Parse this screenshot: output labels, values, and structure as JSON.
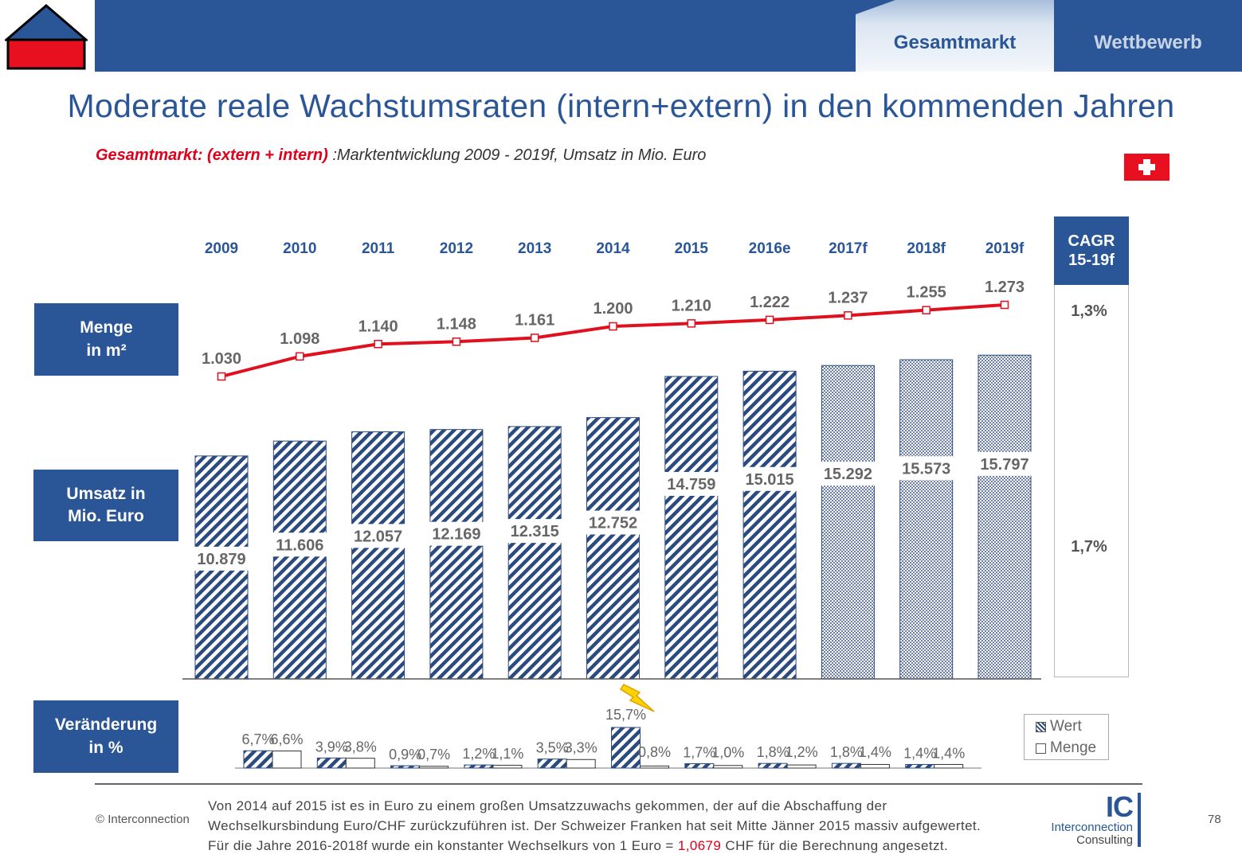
{
  "header": {
    "tabs": [
      {
        "label": "Gesamtmarkt",
        "active": true
      },
      {
        "label": "Wettbewerb",
        "active": false
      }
    ]
  },
  "title": "Moderate reale Wachstumsraten (intern+extern) in den kommenden Jahren",
  "subtitle": {
    "prefix": "Gesamtmarkt: (extern + intern)",
    "text": " :Marktentwicklung 2009 - 2019f, Umsatz in Mio. Euro"
  },
  "row_labels": {
    "menge_line1": "Menge",
    "menge_line2": "in m²",
    "umsatz_line1": "Umsatz in",
    "umsatz_line2": "Mio. Euro",
    "veraenderung_line1": "Veränderung",
    "veraenderung_line2": "in %"
  },
  "cagr": {
    "header_line1": "CAGR",
    "header_line2": "15-19f",
    "menge": "1,3%",
    "umsatz": "1,7%"
  },
  "legend": {
    "wert": "Wert",
    "menge": "Menge"
  },
  "colors": {
    "brand_blue": "#2a5698",
    "line_red": "#e0101e",
    "bar_hatch": "#2a4a80",
    "flag_red": "#e8101e"
  },
  "chart_data": [
    {
      "type": "bar",
      "categories": [
        "2009",
        "2010",
        "2011",
        "2012",
        "2013",
        "2014",
        "2015",
        "2016e",
        "2017f",
        "2018f",
        "2019f"
      ],
      "values": [
        10879,
        11606,
        12057,
        12169,
        12315,
        12752,
        14759,
        15015,
        15292,
        15573,
        15797
      ],
      "value_labels": [
        "10.879",
        "11.606",
        "12.057",
        "12.169",
        "12.315",
        "12.752",
        "14.759",
        "15.015",
        "15.292",
        "15.573",
        "15.797"
      ],
      "forecast_from_index": 8,
      "ylim": [
        0,
        16000
      ]
    },
    {
      "type": "line",
      "categories": [
        "2009",
        "2010",
        "2011",
        "2012",
        "2013",
        "2014",
        "2015",
        "2016e",
        "2017f",
        "2018f",
        "2019f"
      ],
      "values": [
        1030,
        1098,
        1140,
        1148,
        1161,
        1200,
        1210,
        1222,
        1237,
        1255,
        1273
      ],
      "value_labels": [
        "1.030",
        "1.098",
        "1.140",
        "1.148",
        "1.161",
        "1.200",
        "1.210",
        "1.222",
        "1.237",
        "1.255",
        "1.273"
      ]
    },
    {
      "type": "bar",
      "categories": [
        "2010",
        "2011",
        "2012",
        "2013",
        "2014",
        "2015",
        "2016e",
        "2017f",
        "2018f",
        "2019f"
      ],
      "series": [
        {
          "name": "Wert",
          "values": [
            6.7,
            3.9,
            0.9,
            1.2,
            3.5,
            15.7,
            1.7,
            1.8,
            1.8,
            1.4
          ],
          "labels": [
            "6,7%",
            "3,9%",
            "0,9%",
            "1,2%",
            "3,5%",
            "15,7%",
            "1,7%",
            "1,8%",
            "1,8%",
            "1,4%"
          ]
        },
        {
          "name": "Menge",
          "values": [
            6.6,
            3.8,
            0.7,
            1.1,
            3.3,
            0.8,
            1.0,
            1.2,
            1.4,
            1.4
          ],
          "labels": [
            "6,6%",
            "3,8%",
            "0,7%",
            "1,1%",
            "3,3%",
            "0,8%",
            "1,0%",
            "1,2%",
            "1,4%",
            "1,4%"
          ]
        }
      ]
    }
  ],
  "footer": {
    "copyright": "© Interconnection",
    "note_line1": "Von 2014 auf 2015 ist es in Euro zu einem großen Umsatzzuwachs gekommen, der auf die Abschaffung der",
    "note_line2": "Wechselkursbindung Euro/CHF zurückzuführen ist. Der Schweizer Franken hat seit Mitte Jänner 2015 massiv aufgewertet.",
    "note_line3_pre": "Für die Jahre 2016-2018f wurde ein konstanter Wechselkurs von 1 Euro = ",
    "note_line3_highlight": "1,0679",
    "note_line3_post": " CHF für die Berechnung angesetzt.",
    "page_number": "78",
    "brand_mark": "IC",
    "brand_line1": "Interconnection",
    "brand_line2": "Consulting"
  }
}
